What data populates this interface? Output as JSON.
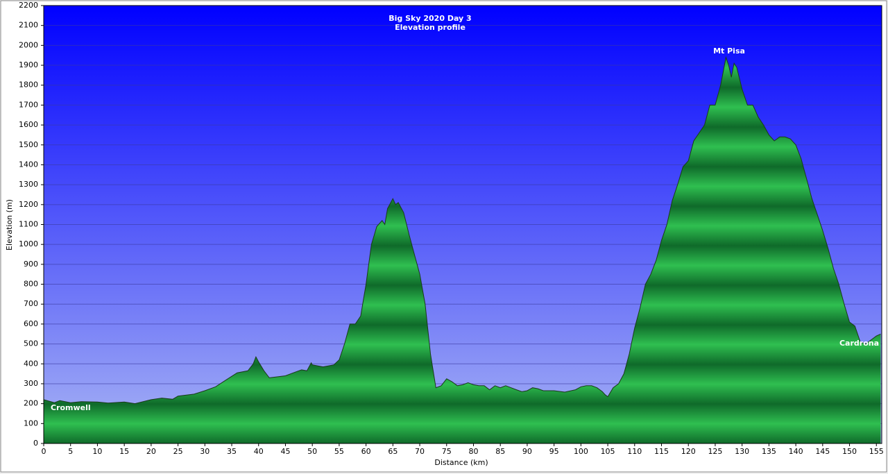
{
  "chart_data": {
    "type": "area",
    "title": "Big Sky 2020 Day 3",
    "subtitle": "Elevation profile",
    "xlabel": "Distance  (km)",
    "ylabel": "Elevation (m)",
    "annotations": [
      "Cromwell",
      "Mt Pisa",
      "Cardrona"
    ],
    "color": "#22a844",
    "grid": true,
    "xlim": [
      0,
      156
    ],
    "ylim": [
      0,
      2200
    ],
    "xticks": [
      0,
      5,
      10,
      15,
      20,
      25,
      30,
      35,
      40,
      45,
      50,
      55,
      60,
      65,
      70,
      75,
      80,
      85,
      90,
      95,
      100,
      105,
      110,
      115,
      120,
      125,
      130,
      135,
      140,
      145,
      150,
      155
    ],
    "yticks": [
      0,
      100,
      200,
      300,
      400,
      500,
      600,
      700,
      800,
      900,
      1000,
      1100,
      1200,
      1300,
      1400,
      1500,
      1600,
      1700,
      1800,
      1900,
      2000,
      2100,
      2200
    ],
    "x": [
      0,
      2,
      3,
      5,
      7,
      10,
      12,
      15,
      17,
      20,
      22,
      24,
      25,
      28,
      30,
      32,
      34,
      36,
      38,
      39,
      39.5,
      40,
      41,
      42,
      45,
      47,
      48,
      49,
      49.8,
      50,
      52,
      54,
      55,
      56,
      57,
      58,
      59,
      60,
      61,
      62,
      63,
      63.5,
      64,
      65,
      65.5,
      66,
      67,
      68,
      69,
      70,
      71,
      72,
      73,
      74,
      75,
      76,
      77,
      78,
      79,
      80,
      81,
      82,
      83,
      84,
      85,
      86,
      87,
      88,
      89,
      90,
      91,
      92,
      93,
      95,
      97,
      99,
      100,
      101,
      102,
      103,
      104,
      104.5,
      105,
      106,
      107,
      108,
      109,
      110,
      111,
      112,
      113,
      114,
      115,
      116,
      117,
      118,
      119,
      120,
      121,
      122,
      123,
      124,
      125,
      126,
      126.5,
      127,
      127.5,
      128,
      128.5,
      129,
      130,
      131,
      132,
      133,
      134,
      135,
      136,
      137,
      138,
      139,
      140,
      141,
      142,
      143,
      144,
      145,
      146,
      147,
      148,
      149,
      150,
      151,
      152,
      153,
      154,
      155,
      155.8
    ],
    "values": [
      220,
      205,
      215,
      205,
      210,
      208,
      203,
      208,
      200,
      220,
      228,
      222,
      238,
      248,
      265,
      285,
      320,
      355,
      365,
      400,
      435,
      410,
      365,
      330,
      340,
      360,
      370,
      365,
      405,
      395,
      385,
      395,
      420,
      500,
      600,
      600,
      640,
      800,
      1000,
      1090,
      1120,
      1100,
      1180,
      1230,
      1200,
      1210,
      1160,
      1050,
      950,
      850,
      700,
      450,
      280,
      290,
      325,
      310,
      290,
      295,
      305,
      295,
      290,
      290,
      270,
      290,
      280,
      290,
      280,
      270,
      260,
      265,
      280,
      275,
      265,
      265,
      258,
      270,
      285,
      290,
      290,
      280,
      260,
      245,
      235,
      280,
      300,
      350,
      450,
      580,
      680,
      800,
      850,
      920,
      1020,
      1100,
      1220,
      1300,
      1390,
      1420,
      1520,
      1560,
      1600,
      1700,
      1700,
      1800,
      1870,
      1940,
      1900,
      1840,
      1910,
      1890,
      1780,
      1700,
      1700,
      1640,
      1600,
      1550,
      1520,
      1540,
      1540,
      1530,
      1500,
      1430,
      1330,
      1230,
      1150,
      1070,
      980,
      880,
      800,
      700,
      610,
      590,
      510,
      500,
      520,
      540,
      550
    ]
  }
}
